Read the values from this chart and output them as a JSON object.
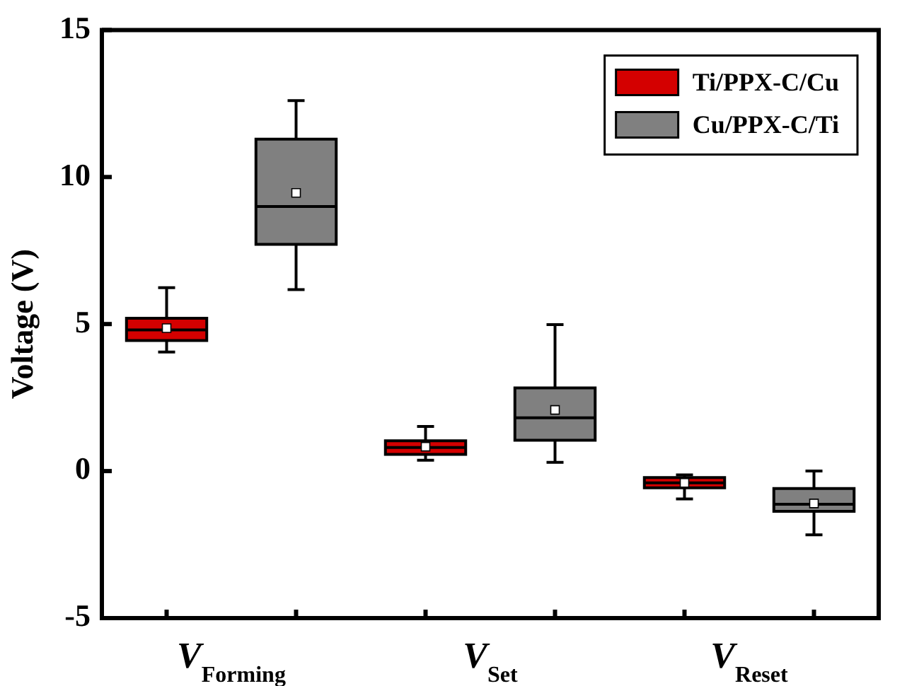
{
  "chart_data": {
    "type": "box",
    "ylabel": "Voltage (V)",
    "categories": [
      "V$_{Forming}$",
      "V$_{Set}$",
      "V$_{Reset}$"
    ],
    "ylim": [
      -5,
      15
    ],
    "yticks": [
      -5,
      0,
      5,
      10,
      15
    ],
    "grid": false,
    "legend": "top right",
    "series": [
      {
        "name": "Ti/PPX-C/Cu",
        "color": "#d40000",
        "boxes": [
          {
            "low": 4.05,
            "q1": 4.44,
            "median": 4.8,
            "q3": 5.2,
            "high": 6.24,
            "mean": 4.86
          },
          {
            "low": 0.37,
            "q1": 0.57,
            "median": 0.8,
            "q3": 1.03,
            "high": 1.52,
            "mean": 0.83
          },
          {
            "low": -0.95,
            "q1": -0.57,
            "median": -0.4,
            "q3": -0.22,
            "high": -0.13,
            "mean": -0.4
          }
        ]
      },
      {
        "name": "Cu/PPX-C/Ti",
        "color": "#808080",
        "boxes": [
          {
            "low": 6.17,
            "q1": 7.71,
            "median": 9.0,
            "q3": 11.29,
            "high": 12.6,
            "mean": 9.46
          },
          {
            "low": 0.3,
            "q1": 1.05,
            "median": 1.81,
            "q3": 2.83,
            "high": 4.98,
            "mean": 2.08
          },
          {
            "low": -2.17,
            "q1": -1.37,
            "median": -1.13,
            "q3": -0.59,
            "high": 0,
            "mean": -1.1
          }
        ]
      }
    ]
  }
}
